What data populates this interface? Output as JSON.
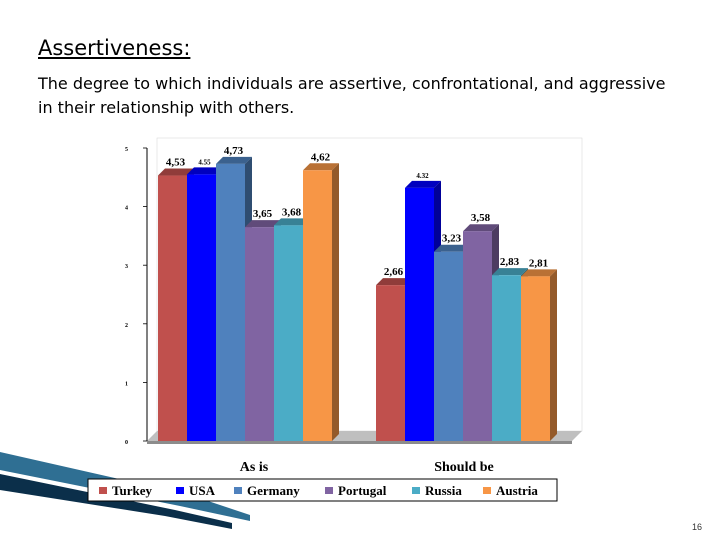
{
  "slide": {
    "title": "Assertiveness:",
    "description": "The degree to which individuals are assertive, confrontational, and aggressive in their relationship with others.",
    "page_number": "16"
  },
  "chart_data": {
    "type": "bar",
    "categories": [
      "As is",
      "Should be"
    ],
    "series": [
      {
        "name": "Turkey",
        "values": [
          4.53,
          2.66
        ],
        "labels": [
          "4,53",
          "2,66"
        ],
        "color": "#c0504d"
      },
      {
        "name": "USA",
        "values": [
          4.55,
          4.32
        ],
        "labels": [
          "4.55",
          "4.32"
        ],
        "color": "#0000ff"
      },
      {
        "name": "Germany",
        "values": [
          4.73,
          3.23
        ],
        "labels": [
          "4,73",
          "3,23"
        ],
        "color": "#4f81bd"
      },
      {
        "name": "Portugal",
        "values": [
          3.65,
          3.58
        ],
        "labels": [
          "3,65",
          "3,58"
        ],
        "color": "#8064a2"
      },
      {
        "name": "Russia",
        "values": [
          3.68,
          2.83
        ],
        "labels": [
          "3,68",
          "2,83"
        ],
        "color": "#4bacc6"
      },
      {
        "name": "Austria",
        "values": [
          4.62,
          2.81
        ],
        "labels": [
          "4,62",
          "2,81"
        ],
        "color": "#f79646"
      }
    ],
    "yticks": [
      "0",
      "1",
      "2",
      "3",
      "4",
      "5"
    ],
    "ylim": [
      0,
      5
    ],
    "grid": false,
    "legend": "bottom"
  }
}
